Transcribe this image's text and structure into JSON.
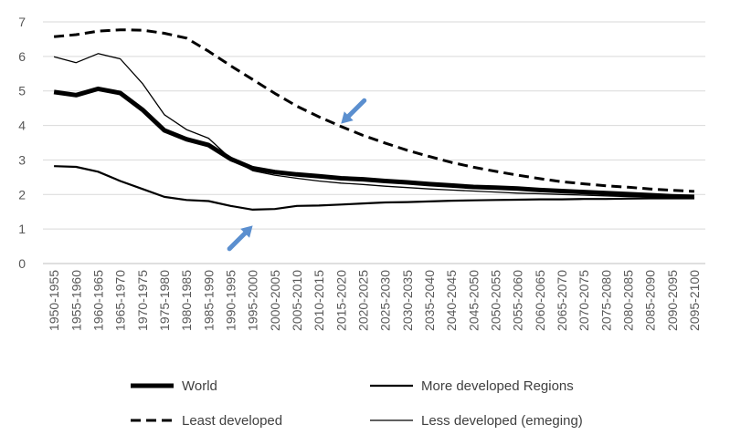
{
  "chart_data": {
    "type": "line",
    "title": "",
    "xlabel": "",
    "ylabel": "",
    "ylim": [
      0,
      7
    ],
    "yticks": [
      0,
      1,
      2,
      3,
      4,
      5,
      6,
      7
    ],
    "grid": "horizontal",
    "legend_position": "bottom",
    "categories": [
      "1950-1955",
      "1955-1960",
      "1960-1965",
      "1965-1970",
      "1970-1975",
      "1975-1980",
      "1980-1985",
      "1985-1990",
      "1990-1995",
      "1995-2000",
      "2000-2005",
      "2005-2010",
      "2010-2015",
      "2015-2020",
      "2020-2025",
      "2025-2030",
      "2030-2035",
      "2035-2040",
      "2040-2045",
      "2045-2050",
      "2050-2055",
      "2055-2060",
      "2060-2065",
      "2065-2070",
      "2070-2075",
      "2075-2080",
      "2080-2085",
      "2085-2090",
      "2090-2095",
      "2095-2100"
    ],
    "series": [
      {
        "name": "World",
        "style": "thick",
        "values": [
          4.97,
          4.88,
          5.06,
          4.94,
          4.46,
          3.86,
          3.6,
          3.43,
          3.03,
          2.76,
          2.65,
          2.58,
          2.53,
          2.47,
          2.44,
          2.39,
          2.35,
          2.3,
          2.26,
          2.22,
          2.2,
          2.17,
          2.13,
          2.1,
          2.07,
          2.04,
          2.01,
          1.98,
          1.95,
          1.93
        ]
      },
      {
        "name": "More developed Regions",
        "style": "medium",
        "values": [
          2.82,
          2.8,
          2.66,
          2.39,
          2.16,
          1.93,
          1.84,
          1.81,
          1.67,
          1.56,
          1.58,
          1.67,
          1.68,
          1.71,
          1.74,
          1.77,
          1.78,
          1.8,
          1.82,
          1.83,
          1.84,
          1.85,
          1.86,
          1.86,
          1.87,
          1.87,
          1.88,
          1.89,
          1.89,
          1.89
        ]
      },
      {
        "name": "Least developed",
        "style": "dashed",
        "values": [
          6.57,
          6.63,
          6.73,
          6.77,
          6.76,
          6.67,
          6.53,
          6.15,
          5.73,
          5.33,
          4.93,
          4.56,
          4.25,
          3.97,
          3.71,
          3.49,
          3.28,
          3.1,
          2.93,
          2.79,
          2.67,
          2.56,
          2.46,
          2.37,
          2.31,
          2.25,
          2.21,
          2.16,
          2.12,
          2.09
        ]
      },
      {
        "name": "Less developed (emeging)",
        "style": "thin",
        "values": [
          5.99,
          5.82,
          6.08,
          5.93,
          5.22,
          4.31,
          3.88,
          3.63,
          3.04,
          2.69,
          2.56,
          2.47,
          2.39,
          2.33,
          2.29,
          2.24,
          2.2,
          2.16,
          2.13,
          2.1,
          2.07,
          2.04,
          2.02,
          2.0,
          1.98,
          1.96,
          1.94,
          1.93,
          1.92,
          1.91
        ]
      }
    ],
    "annotations": [
      {
        "type": "arrow",
        "color": "#5b8fcf",
        "target_category": "2015-2020",
        "target_value": 4.05,
        "pointing": "down-left"
      },
      {
        "type": "arrow",
        "color": "#5b8fcf",
        "target_category": "1995-2000",
        "target_value": 1.1,
        "pointing": "up-right"
      }
    ],
    "colors": {
      "line": "#000000",
      "grid": "#d9d9d9",
      "axis": "#bfbfbf",
      "arrow": "#5b8fcf",
      "text": "#595959"
    }
  }
}
